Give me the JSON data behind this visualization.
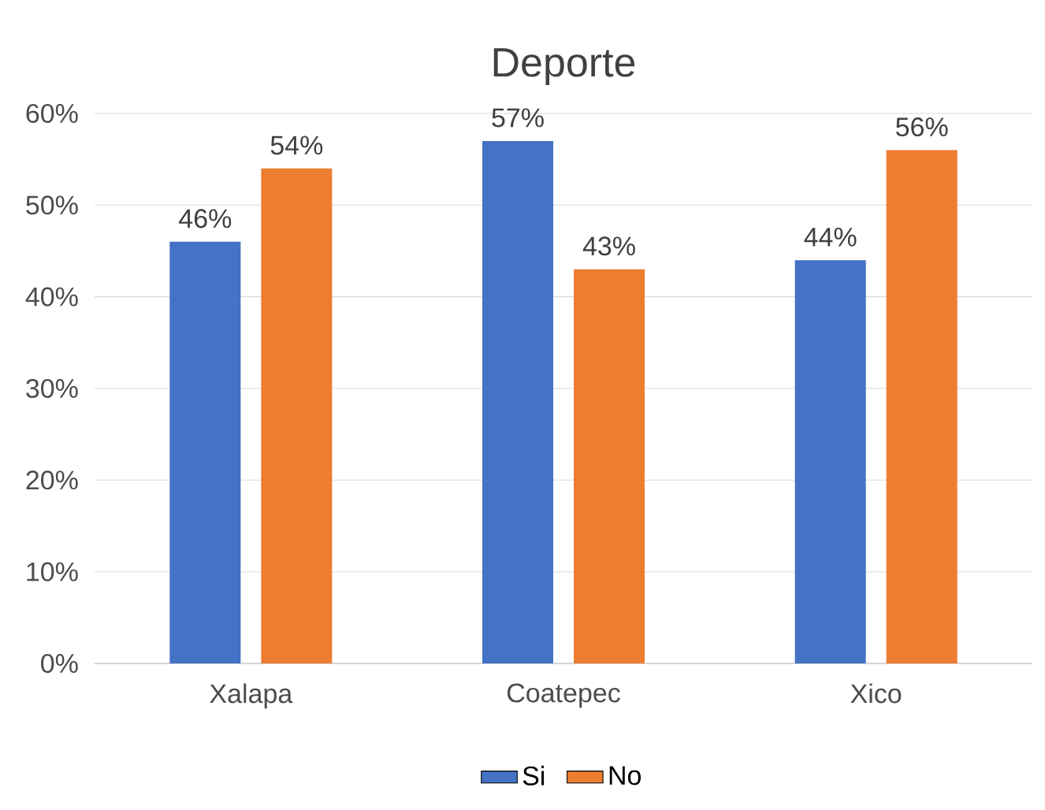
{
  "chart_data": {
    "type": "bar",
    "title": "Deporte",
    "categories": [
      "Xalapa",
      "Coatepec",
      "Xico"
    ],
    "series": [
      {
        "name": "Si",
        "color": "#4472c4",
        "values": [
          46,
          57,
          44
        ],
        "value_labels": [
          "46%",
          "57%",
          "44%"
        ]
      },
      {
        "name": "No",
        "color": "#ed7d31",
        "values": [
          54,
          43,
          56
        ],
        "value_labels": [
          "54%",
          "43%",
          "56%"
        ]
      }
    ],
    "ylim": [
      0,
      60
    ],
    "yticks": [
      {
        "value": 0,
        "label": "0%"
      },
      {
        "value": 10,
        "label": "10%"
      },
      {
        "value": 20,
        "label": "20%"
      },
      {
        "value": 30,
        "label": "30%"
      },
      {
        "value": 40,
        "label": "40%"
      },
      {
        "value": 50,
        "label": "50%"
      },
      {
        "value": 60,
        "label": "60%"
      }
    ],
    "grid": "y",
    "legend": "bottom"
  }
}
